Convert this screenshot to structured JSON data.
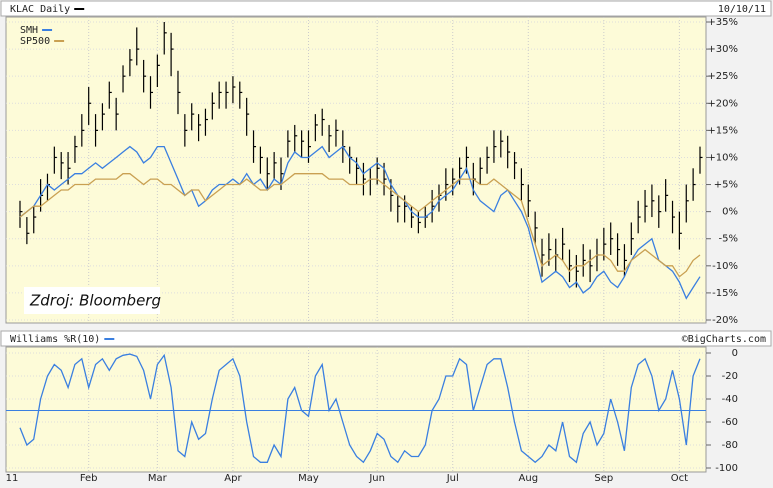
{
  "chart_data": [
    {
      "type": "ohlc",
      "date": "10/10/11",
      "annotation": "Zdroj: Bloomberg",
      "ylim": [
        -20,
        35
      ],
      "yticks": [
        {
          "value": 35,
          "label": "+35%"
        },
        {
          "value": 30,
          "label": "+30%"
        },
        {
          "value": 25,
          "label": "+25%"
        },
        {
          "value": 20,
          "label": "+20%"
        },
        {
          "value": 15,
          "label": "+15%"
        },
        {
          "value": 10,
          "label": "+10%"
        },
        {
          "value": 5,
          "label": "+5%"
        },
        {
          "value": 0,
          "label": "0%"
        },
        {
          "value": -5,
          "label": "-5%"
        },
        {
          "value": -10,
          "label": "-10%"
        },
        {
          "value": -15,
          "label": "-15%"
        },
        {
          "value": -20,
          "label": "-20%"
        }
      ],
      "grid": true,
      "series": [
        {
          "name": "KLAC Daily",
          "color": "#000000",
          "high": [
            2,
            -1,
            1,
            6,
            7,
            12,
            11,
            11,
            14,
            18,
            23,
            18,
            20,
            24,
            21,
            27,
            30,
            34,
            28,
            25,
            29,
            35,
            33,
            26,
            18,
            20,
            18,
            19,
            22,
            24,
            24,
            25,
            24,
            21,
            15,
            12,
            10,
            11,
            10,
            15,
            16,
            15,
            15,
            18,
            19,
            16,
            17,
            15,
            12,
            10,
            9,
            8,
            10,
            9,
            6,
            3,
            3,
            1,
            0,
            1,
            4,
            5,
            8,
            8,
            10,
            12,
            9,
            10,
            12,
            15,
            15,
            14,
            11,
            8,
            5,
            0,
            -5,
            -4,
            -5,
            -3,
            -7,
            -8,
            -6,
            -7,
            -5,
            -3,
            -2,
            -4,
            -6,
            -2,
            2,
            4,
            5,
            3,
            6,
            2,
            0,
            5,
            8,
            12
          ],
          "low": [
            -3,
            -6,
            -4,
            0,
            2,
            7,
            6,
            5,
            9,
            12,
            16,
            12,
            15,
            19,
            15,
            22,
            25,
            27,
            22,
            19,
            23,
            29,
            25,
            18,
            12,
            15,
            13,
            14,
            17,
            19,
            19,
            20,
            19,
            14,
            9,
            7,
            4,
            6,
            4,
            10,
            11,
            10,
            9,
            13,
            14,
            11,
            12,
            9,
            7,
            5,
            3,
            3,
            5,
            3,
            0,
            -2,
            -2,
            -3,
            -4,
            -3,
            -2,
            0,
            2,
            3,
            5,
            7,
            3,
            5,
            7,
            9,
            10,
            8,
            6,
            2,
            -1,
            -6,
            -12,
            -10,
            -11,
            -9,
            -13,
            -14,
            -12,
            -13,
            -11,
            -9,
            -8,
            -10,
            -12,
            -8,
            -4,
            -2,
            -1,
            -3,
            0,
            -4,
            -7,
            -2,
            2,
            7
          ],
          "values": [
            0,
            -4,
            -1,
            3,
            5,
            10,
            9,
            8,
            12,
            15,
            20,
            15,
            18,
            22,
            18,
            25,
            28,
            30,
            25,
            22,
            27,
            33,
            30,
            22,
            15,
            18,
            16,
            17,
            20,
            22,
            22,
            23,
            22,
            18,
            12,
            10,
            7,
            9,
            7,
            13,
            14,
            13,
            12,
            16,
            17,
            14,
            15,
            12,
            10,
            8,
            6,
            6,
            8,
            6,
            3,
            1,
            1,
            -1,
            -2,
            -1,
            1,
            3,
            5,
            6,
            8,
            10,
            6,
            8,
            10,
            12,
            13,
            11,
            9,
            5,
            2,
            -3,
            -8,
            -7,
            -8,
            -6,
            -10,
            -11,
            -9,
            -10,
            -8,
            -6,
            -5,
            -7,
            -9,
            -5,
            -1,
            1,
            2,
            0,
            3,
            -1,
            -4,
            2,
            5,
            10
          ]
        },
        {
          "name": "SMH",
          "color": "#3a7fe0",
          "values": [
            -1,
            0,
            1,
            3,
            5,
            4,
            5,
            6,
            7,
            7,
            8,
            9,
            8,
            9,
            10,
            11,
            12,
            11,
            9,
            10,
            12,
            12,
            9,
            6,
            3,
            4,
            1,
            2,
            4,
            5,
            5,
            6,
            5,
            7,
            5,
            6,
            4,
            6,
            5,
            9,
            11,
            10,
            10,
            11,
            12,
            10,
            11,
            12,
            10,
            9,
            7,
            8,
            9,
            8,
            5,
            3,
            2,
            0,
            -1,
            -1,
            0,
            2,
            3,
            4,
            6,
            8,
            4,
            2,
            1,
            0,
            3,
            4,
            2,
            0,
            -3,
            -8,
            -13,
            -12,
            -11,
            -12,
            -14,
            -13,
            -15,
            -14,
            -12,
            -11,
            -13,
            -14,
            -12,
            -9,
            -7,
            -6,
            -5,
            -9,
            -10,
            -11,
            -13,
            -16,
            -14,
            -12
          ]
        },
        {
          "name": "SP500",
          "color": "#c9a052",
          "values": [
            -1,
            0,
            1,
            1,
            2,
            3,
            4,
            4,
            5,
            5,
            5,
            6,
            6,
            6,
            6,
            7,
            7,
            6,
            5,
            6,
            6,
            5,
            5,
            4,
            3,
            4,
            4,
            2,
            3,
            4,
            5,
            5,
            5,
            6,
            5,
            4,
            4,
            5,
            5,
            6,
            7,
            7,
            7,
            7,
            7,
            6,
            6,
            6,
            5,
            5,
            5,
            6,
            6,
            5,
            4,
            3,
            2,
            1,
            0,
            1,
            2,
            3,
            4,
            5,
            6,
            6,
            6,
            5,
            5,
            6,
            5,
            4,
            3,
            2,
            -2,
            -6,
            -10,
            -9,
            -8,
            -9,
            -11,
            -10,
            -10,
            -9,
            -8,
            -8,
            -9,
            -11,
            -11,
            -9,
            -8,
            -7,
            -8,
            -9,
            -10,
            -10,
            -12,
            -11,
            -9,
            -8
          ]
        }
      ]
    },
    {
      "type": "line",
      "source": "©BigCharts.com",
      "categories": [
        "11",
        null,
        null,
        null,
        null,
        null,
        null,
        null,
        null,
        null,
        "Feb",
        null,
        null,
        null,
        null,
        null,
        null,
        null,
        null,
        null,
        "Mar",
        null,
        null,
        null,
        null,
        null,
        null,
        null,
        null,
        null,
        null,
        "Apr",
        null,
        null,
        null,
        null,
        null,
        null,
        null,
        null,
        null,
        null,
        "May",
        null,
        null,
        null,
        null,
        null,
        null,
        null,
        null,
        null,
        "Jun",
        null,
        null,
        null,
        null,
        null,
        null,
        null,
        null,
        null,
        null,
        "Jul",
        null,
        null,
        null,
        null,
        null,
        null,
        null,
        null,
        null,
        null,
        "Aug",
        null,
        null,
        null,
        null,
        null,
        null,
        null,
        null,
        null,
        null,
        "Sep",
        null,
        null,
        null,
        null,
        null,
        null,
        null,
        null,
        null,
        null,
        "Oct",
        null,
        null,
        null
      ],
      "ylim": [
        -100,
        0
      ],
      "yticks": [
        0,
        -20,
        -40,
        -60,
        -80,
        -100
      ],
      "hline": -50,
      "grid": true,
      "series": [
        {
          "name": "Williams %R(10)",
          "color": "#3a7fe0",
          "values": [
            -65,
            -80,
            -75,
            -40,
            -20,
            -10,
            -15,
            -30,
            -10,
            -5,
            -30,
            -10,
            -5,
            -15,
            -5,
            -2,
            -1,
            -3,
            -15,
            -40,
            -10,
            -2,
            -30,
            -85,
            -90,
            -60,
            -75,
            -70,
            -40,
            -15,
            -10,
            -5,
            -20,
            -60,
            -90,
            -95,
            -95,
            -80,
            -90,
            -40,
            -30,
            -50,
            -55,
            -20,
            -10,
            -50,
            -40,
            -60,
            -80,
            -90,
            -95,
            -85,
            -70,
            -75,
            -90,
            -95,
            -85,
            -90,
            -90,
            -80,
            -50,
            -40,
            -20,
            -20,
            -5,
            -10,
            -50,
            -30,
            -10,
            -5,
            -5,
            -30,
            -60,
            -85,
            -90,
            -95,
            -90,
            -80,
            -85,
            -60,
            -90,
            -95,
            -70,
            -60,
            -80,
            -70,
            -40,
            -60,
            -85,
            -30,
            -10,
            -5,
            -20,
            -50,
            -40,
            -15,
            -40,
            -80,
            -20,
            -5
          ]
        }
      ]
    }
  ]
}
